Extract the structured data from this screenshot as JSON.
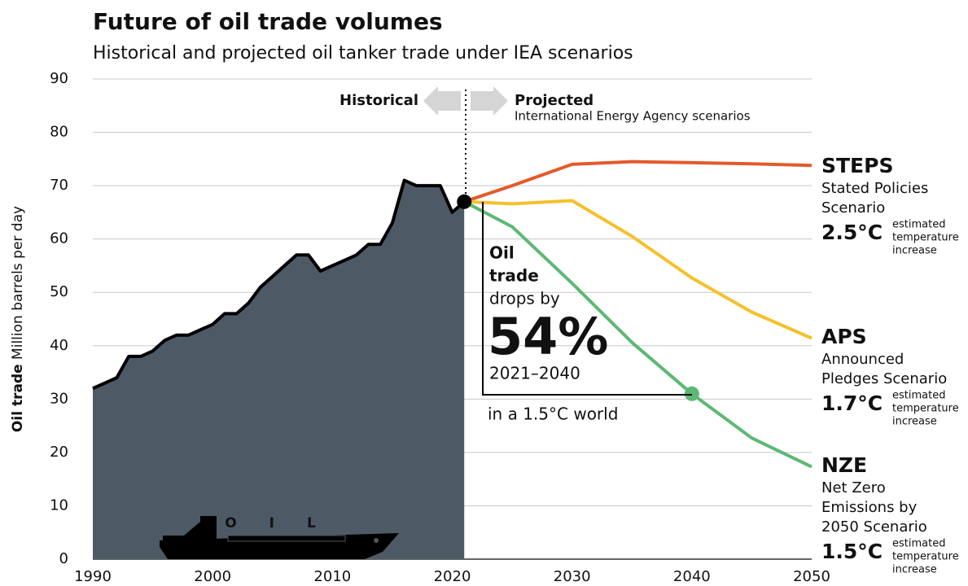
{
  "chart_data": {
    "type": "line",
    "title": "Future of oil trade volumes",
    "subtitle": "Historical and projected oil tanker trade under IEA scenarios",
    "y_label_bold": "Oil trade",
    "y_label": "Million barrels per day",
    "xlim": [
      1990,
      2050
    ],
    "xticks": [
      1990,
      2000,
      2010,
      2020,
      2030,
      2040,
      2050
    ],
    "ylim": [
      0,
      90
    ],
    "yticks": [
      0,
      10,
      20,
      30,
      40,
      50,
      60,
      70,
      80,
      90
    ],
    "grid": true,
    "historical": {
      "label": "Historical",
      "color": "#4d5a66",
      "x": [
        1990,
        1991,
        1992,
        1993,
        1994,
        1995,
        1996,
        1997,
        1998,
        1999,
        2000,
        2001,
        2002,
        2003,
        2004,
        2005,
        2006,
        2007,
        2008,
        2009,
        2010,
        2011,
        2012,
        2013,
        2014,
        2015,
        2016,
        2017,
        2018,
        2019,
        2020,
        2021
      ],
      "values": [
        32,
        33,
        34,
        38,
        38,
        39,
        41,
        42,
        42,
        43,
        44,
        46,
        46,
        48,
        51,
        53,
        55,
        57,
        57,
        54,
        55,
        56,
        57,
        59,
        59,
        63,
        71,
        70,
        70,
        70,
        65,
        67
      ]
    },
    "projected": {
      "label": "Projected",
      "sublabel": "International Energy Agency scenarios"
    },
    "series": [
      {
        "name": "STEPS",
        "color": "#e35a2b",
        "description": [
          "Stated Policies",
          "Scenario"
        ],
        "temperature": "2.5°C",
        "temperature_note": [
          "estimated",
          "temperature",
          "increase"
        ],
        "x": [
          2021,
          2025,
          2030,
          2035,
          2040,
          2045,
          2050
        ],
        "values": [
          67,
          70,
          74,
          74.5,
          74.3,
          74.1,
          73.8
        ]
      },
      {
        "name": "APS",
        "color": "#f5c02c",
        "description": [
          "Announced",
          "Pledges Scenario"
        ],
        "temperature": "1.7°C",
        "temperature_note": [
          "estimated",
          "temperature",
          "increase"
        ],
        "x": [
          2021,
          2025,
          2030,
          2035,
          2040,
          2045,
          2050
        ],
        "values": [
          67,
          66.6,
          67.2,
          60.5,
          52.7,
          46.3,
          41.4
        ]
      },
      {
        "name": "NZE",
        "color": "#5db874",
        "description": [
          "Net Zero",
          "Emissions by",
          "2050 Scenario"
        ],
        "temperature": "1.5°C",
        "temperature_note": [
          "estimated",
          "temperature",
          "increase"
        ],
        "x": [
          2021,
          2025,
          2030,
          2035,
          2040,
          2045,
          2050
        ],
        "values": [
          67,
          62.3,
          51.7,
          40.6,
          31,
          22.7,
          17.3
        ]
      }
    ],
    "annotation": {
      "heading": [
        "Oil",
        "trade"
      ],
      "text": "drops by",
      "value": "54%",
      "period": "2021–2040",
      "note": "in a 1.5°C world"
    },
    "ship_label": "OIL"
  }
}
